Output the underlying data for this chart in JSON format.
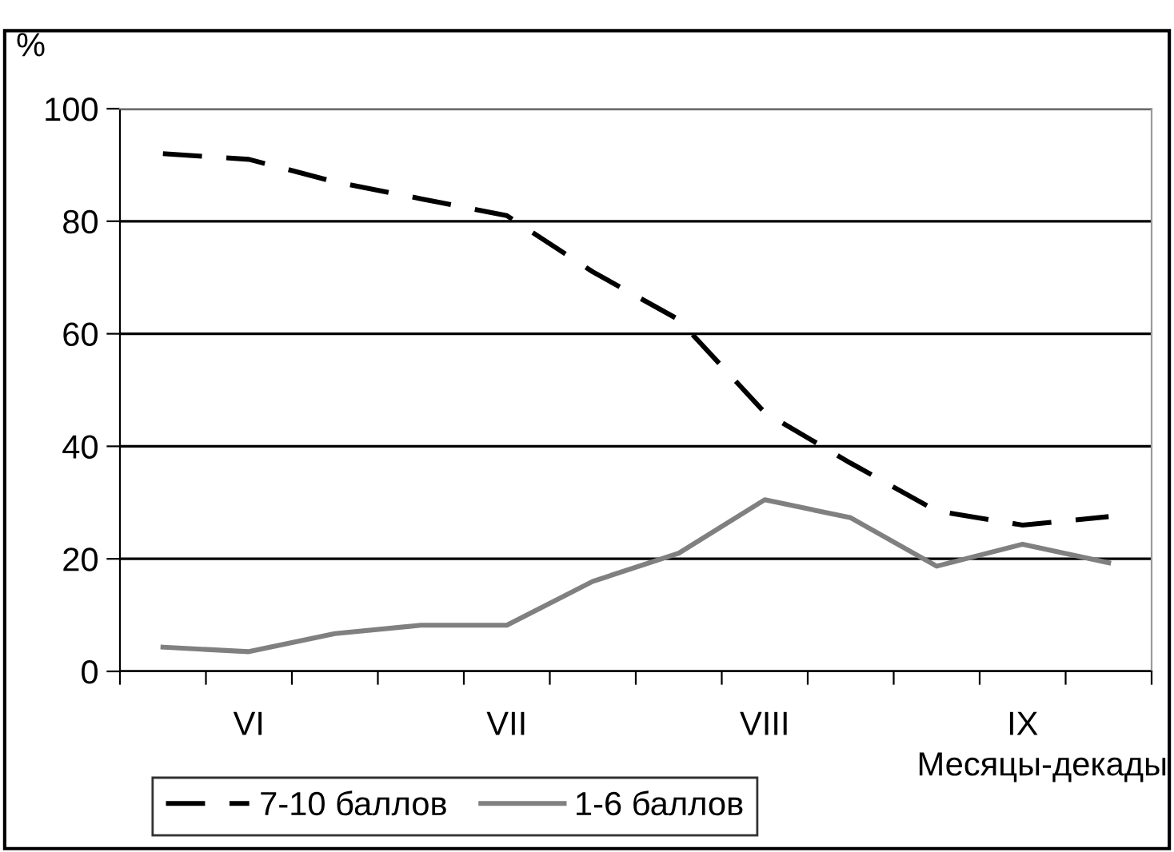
{
  "chart_data": {
    "type": "line",
    "ylabel": "%",
    "xlabel": "Месяцы-декады",
    "categories": [
      null,
      "VI",
      null,
      null,
      "VII",
      null,
      null,
      "VIII",
      null,
      null,
      "IX",
      null
    ],
    "series": [
      {
        "name": "7-10 баллов",
        "color": "#000000",
        "line_style": "dashed",
        "values": [
          92,
          91,
          87,
          84,
          81,
          71,
          62.5,
          46,
          37,
          28.5,
          26,
          27.5
        ]
      },
      {
        "name": "1-6 баллов",
        "color": "#808080",
        "line_style": "solid",
        "values": [
          4.3,
          3.5,
          6.7,
          8.2,
          8.2,
          16,
          21,
          30.5,
          27.3,
          18.7,
          22.6,
          19.3
        ]
      }
    ],
    "ylim": [
      0,
      100
    ],
    "yticks": [
      0,
      20,
      40,
      60,
      80,
      100
    ],
    "grid": "y",
    "legend": "bottom left",
    "marker": "none"
  }
}
